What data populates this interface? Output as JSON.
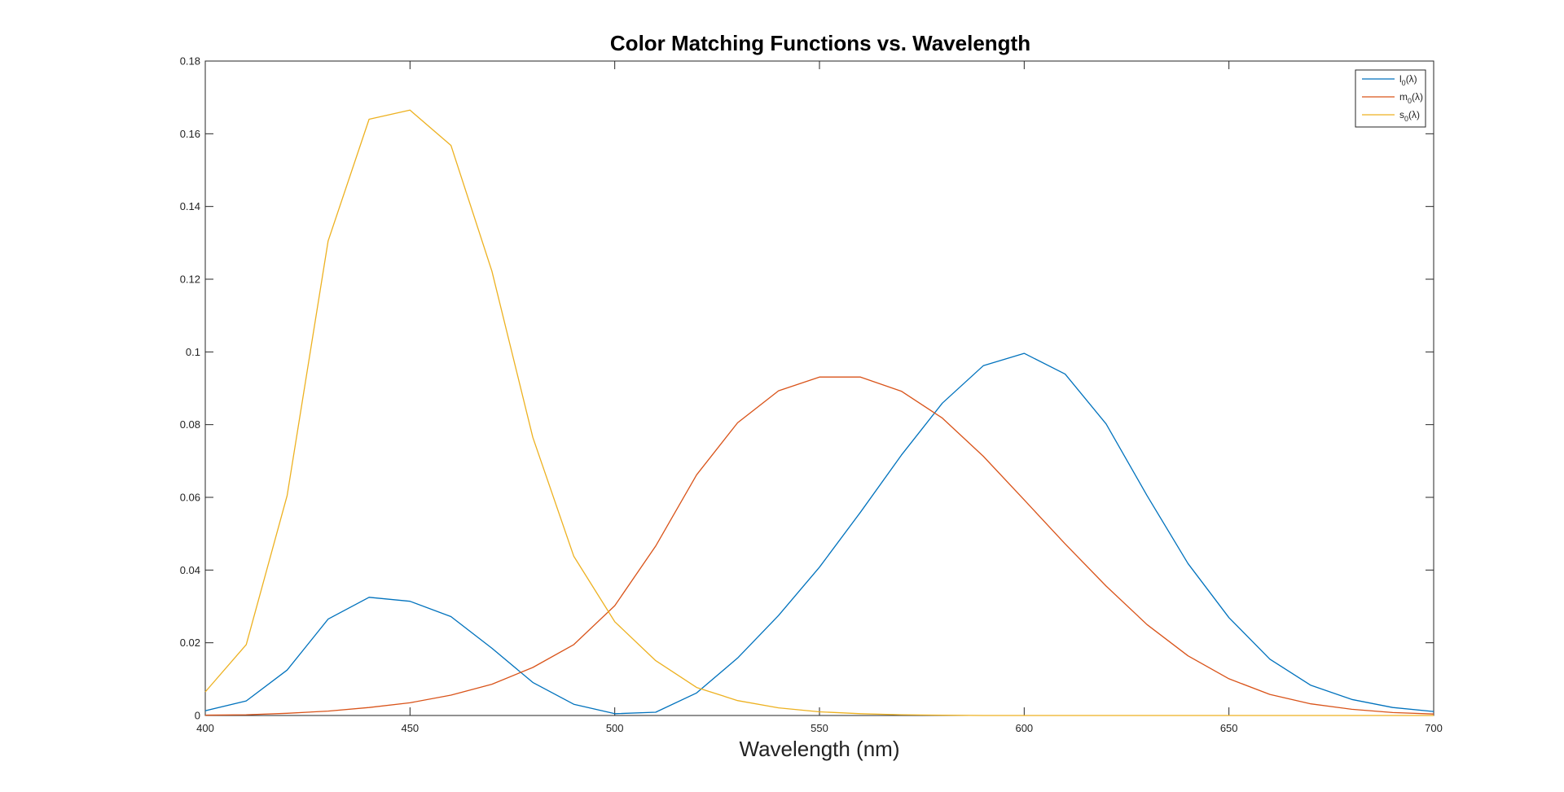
{
  "chart_data": {
    "type": "line",
    "title": "Color Matching Functions vs. Wavelength",
    "xlabel": "Wavelength (nm)",
    "ylabel": "",
    "xlim": [
      400,
      700
    ],
    "ylim": [
      0,
      0.18
    ],
    "xticks": [
      "400",
      "450",
      "500",
      "550",
      "600",
      "650",
      "700"
    ],
    "yticks": [
      "0",
      "0.02",
      "0.04",
      "0.06",
      "0.08",
      "0.1",
      "0.12",
      "0.14",
      "0.16",
      "0.18"
    ],
    "grid": false,
    "legend_position": "top-right",
    "x": [
      400,
      410,
      420,
      430,
      440,
      450,
      460,
      470,
      480,
      490,
      500,
      510,
      520,
      530,
      540,
      550,
      560,
      570,
      580,
      590,
      600,
      610,
      620,
      630,
      640,
      650,
      660,
      670,
      680,
      690,
      700
    ],
    "series": [
      {
        "name": "l0(λ)",
        "legend_base": "l",
        "legend_sub": "0",
        "legend_tail": "(λ)",
        "color": "#0072BD",
        "values": [
          0.0013,
          0.004,
          0.0125,
          0.0265,
          0.0325,
          0.0314,
          0.0272,
          0.0185,
          0.0091,
          0.0031,
          0.0005,
          0.0009,
          0.0062,
          0.0158,
          0.0275,
          0.0408,
          0.0559,
          0.0716,
          0.0859,
          0.0962,
          0.0996,
          0.0939,
          0.0802,
          0.0605,
          0.0418,
          0.0269,
          0.0155,
          0.0083,
          0.0044,
          0.0022,
          0.0011
        ]
      },
      {
        "name": "m0(λ)",
        "legend_base": "m",
        "legend_sub": "0",
        "legend_tail": "(λ)",
        "color": "#D95319",
        "values": [
          0.0001,
          0.0002,
          0.0006,
          0.0012,
          0.0022,
          0.0035,
          0.0056,
          0.0086,
          0.0132,
          0.0195,
          0.0302,
          0.0466,
          0.0662,
          0.0805,
          0.0893,
          0.0931,
          0.0931,
          0.0892,
          0.0818,
          0.0713,
          0.0593,
          0.0472,
          0.0356,
          0.025,
          0.0164,
          0.0101,
          0.0058,
          0.0032,
          0.0017,
          0.0008,
          0.0004
        ]
      },
      {
        "name": "s0(λ)",
        "legend_base": "s",
        "legend_sub": "0",
        "legend_tail": "(λ)",
        "color": "#EDB120",
        "values": [
          0.0065,
          0.0195,
          0.0605,
          0.1305,
          0.164,
          0.1665,
          0.1568,
          0.1222,
          0.0765,
          0.0438,
          0.0258,
          0.0151,
          0.0077,
          0.0041,
          0.0021,
          0.001,
          0.0005,
          0.0002,
          0.0001,
          0,
          0,
          0,
          0,
          0,
          0,
          0,
          0,
          0,
          0,
          0,
          0
        ]
      }
    ]
  }
}
